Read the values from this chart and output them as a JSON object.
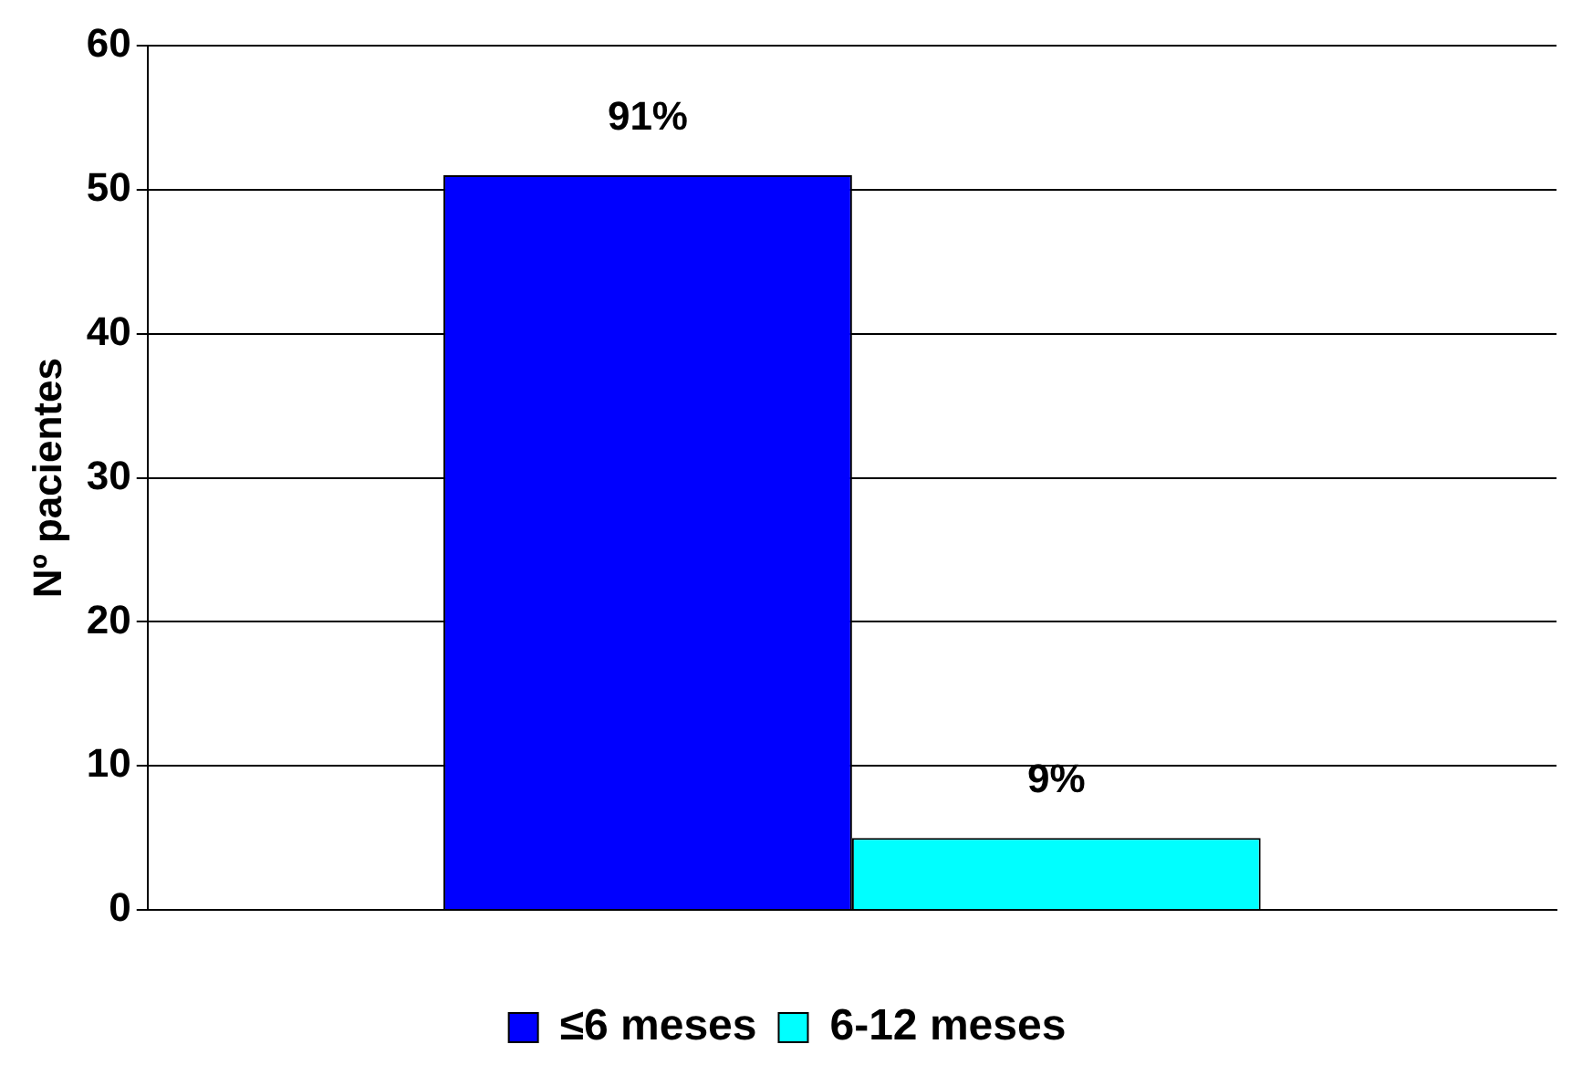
{
  "chart_data": {
    "type": "bar",
    "ylabel": "Nº pacientes",
    "categories": [
      null
    ],
    "series": [
      {
        "name": "≤6 meses",
        "color": "#0000ff",
        "values": [
          51
        ]
      },
      {
        "name": "6-12 meses",
        "color": "#00ffff",
        "values": [
          5
        ]
      }
    ],
    "annotations": [
      "91%",
      "9%"
    ],
    "ylim": [
      0,
      60
    ],
    "yticks": [
      0,
      10,
      20,
      30,
      40,
      50,
      60
    ],
    "grid": "y",
    "legend": "bottom"
  }
}
